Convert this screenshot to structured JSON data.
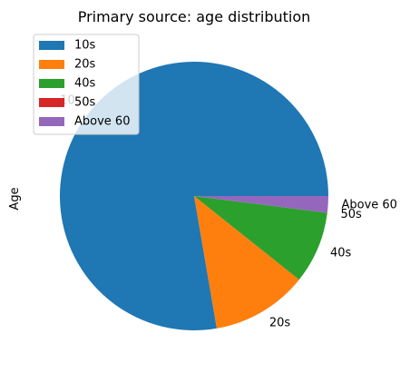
{
  "chart_data": {
    "type": "pie",
    "title": "Primary source: age distribution",
    "ylabel": "Age",
    "categories": [
      "10s",
      "20s",
      "40s",
      "50s",
      "Above 60"
    ],
    "values": [
      77.7,
      11.6,
      8.7,
      0.0,
      2.0
    ],
    "slice_labels": [
      "10s",
      "20s",
      "40s",
      "50s",
      "Above 60"
    ],
    "colors": [
      "#1f77b4",
      "#ff7f0e",
      "#2ca02c",
      "#d62728",
      "#9467bd"
    ],
    "start_angle_deg": 0,
    "direction": "counterclockwise",
    "legend": {
      "placement": "upper-left",
      "entries": [
        "10s",
        "20s",
        "40s",
        "50s",
        "Above 60"
      ]
    }
  }
}
